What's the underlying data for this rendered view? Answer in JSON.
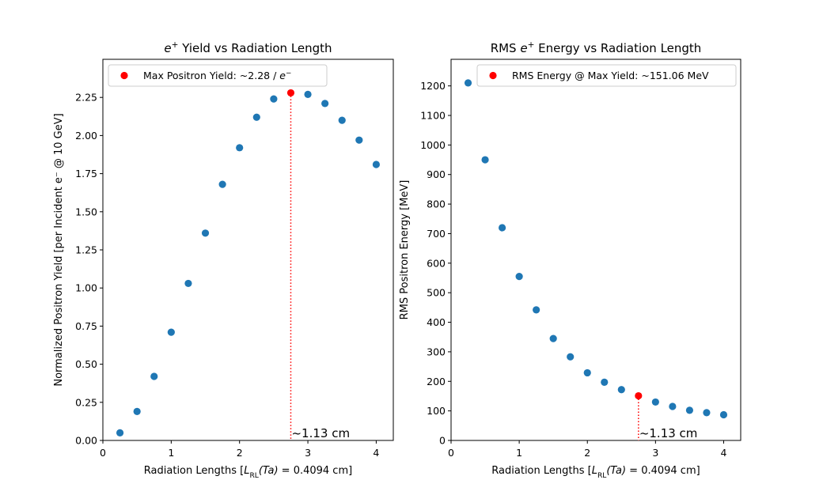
{
  "chart_data": [
    {
      "type": "scatter",
      "title_parts": [
        {
          "text": "e",
          "style": "italic"
        },
        {
          "text": "+",
          "style": "sup"
        },
        {
          "text": " Yield vs Radiation Length",
          "style": "normal"
        }
      ],
      "xlabel": "Radiation Lengths [L_RL(Ta) = 0.4094 cm]",
      "xlabel_parts": [
        {
          "text": "Radiation Lengths [",
          "style": "normal"
        },
        {
          "text": "L",
          "style": "italic"
        },
        {
          "text": "RL",
          "style": "sub"
        },
        {
          "text": "(Ta)",
          "style": "italic"
        },
        {
          "text": " = 0.4094 cm]",
          "style": "normal"
        }
      ],
      "ylabel": "Normalized Positron Yield [per Incident e⁻ @ 10 GeV]",
      "xlim": [
        0,
        4.25
      ],
      "ylim": [
        0,
        2.5
      ],
      "xticks": [
        0,
        1,
        2,
        3,
        4
      ],
      "yticks": [
        0.0,
        0.25,
        0.5,
        0.75,
        1.0,
        1.25,
        1.5,
        1.75,
        2.0,
        2.25
      ],
      "ytick_labels": [
        "0.00",
        "0.25",
        "0.50",
        "0.75",
        "1.00",
        "1.25",
        "1.50",
        "1.75",
        "2.00",
        "2.25"
      ],
      "series": [
        {
          "color": "#1f77b4",
          "x": [
            0.25,
            0.5,
            0.75,
            1.0,
            1.25,
            1.5,
            1.75,
            2.0,
            2.25,
            2.5,
            3.0,
            3.25,
            3.5,
            3.75,
            4.0
          ],
          "y": [
            0.05,
            0.19,
            0.42,
            0.71,
            1.03,
            1.36,
            1.68,
            1.92,
            2.12,
            2.24,
            2.27,
            2.21,
            2.1,
            1.97,
            1.81
          ]
        },
        {
          "name_parts": [
            {
              "text": "Max Positron Yield: ~2.28 / ",
              "style": "normal"
            },
            {
              "text": "e",
              "style": "italic"
            },
            {
              "text": "−",
              "style": "sup"
            }
          ],
          "color": "#ff0000",
          "x": [
            2.75
          ],
          "y": [
            2.28
          ]
        }
      ],
      "vline": {
        "x": 2.75,
        "y_top": 2.28,
        "color": "#ff0000",
        "style": "dotted"
      },
      "annotation": {
        "text": "~1.13 cm",
        "x": 2.75,
        "y": 0
      },
      "legend_placement": "upper-left",
      "grid": false
    },
    {
      "type": "scatter",
      "title_parts": [
        {
          "text": "RMS ",
          "style": "normal"
        },
        {
          "text": "e",
          "style": "italic"
        },
        {
          "text": "+",
          "style": "sup"
        },
        {
          "text": " Energy vs Radiation Length",
          "style": "normal"
        }
      ],
      "xlabel": "Radiation Lengths [L_RL(Ta) = 0.4094 cm]",
      "xlabel_parts": [
        {
          "text": "Radiation Lengths [",
          "style": "normal"
        },
        {
          "text": "L",
          "style": "italic"
        },
        {
          "text": "RL",
          "style": "sub"
        },
        {
          "text": "(Ta)",
          "style": "italic"
        },
        {
          "text": " = 0.4094 cm]",
          "style": "normal"
        }
      ],
      "ylabel": "RMS Positron Energy [MeV]",
      "xlim": [
        0,
        4.25
      ],
      "ylim": [
        0,
        1290
      ],
      "xticks": [
        0,
        1,
        2,
        3,
        4
      ],
      "yticks": [
        0,
        100,
        200,
        300,
        400,
        500,
        600,
        700,
        800,
        900,
        1000,
        1100,
        1200
      ],
      "ytick_labels": [
        "0",
        "100",
        "200",
        "300",
        "400",
        "500",
        "600",
        "700",
        "800",
        "900",
        "1000",
        "1100",
        "1200"
      ],
      "series": [
        {
          "color": "#1f77b4",
          "x": [
            0.25,
            0.5,
            0.75,
            1.0,
            1.25,
            1.5,
            1.75,
            2.0,
            2.25,
            2.5,
            3.0,
            3.25,
            3.5,
            3.75,
            4.0
          ],
          "y": [
            1210,
            950,
            720,
            555,
            442,
            345,
            283,
            229,
            197,
            172,
            130,
            115,
            102,
            94,
            87
          ]
        },
        {
          "name_parts": [
            {
              "text": "RMS Energy @ Max Yield: ~151.06 MeV",
              "style": "normal"
            }
          ],
          "color": "#ff0000",
          "x": [
            2.75
          ],
          "y": [
            151.06
          ]
        }
      ],
      "vline": {
        "x": 2.75,
        "y_top": 151.06,
        "color": "#ff0000",
        "style": "dotted"
      },
      "annotation": {
        "text": "~1.13 cm",
        "x": 2.75,
        "y": 0
      },
      "legend_placement": "upper-right",
      "grid": false
    }
  ]
}
